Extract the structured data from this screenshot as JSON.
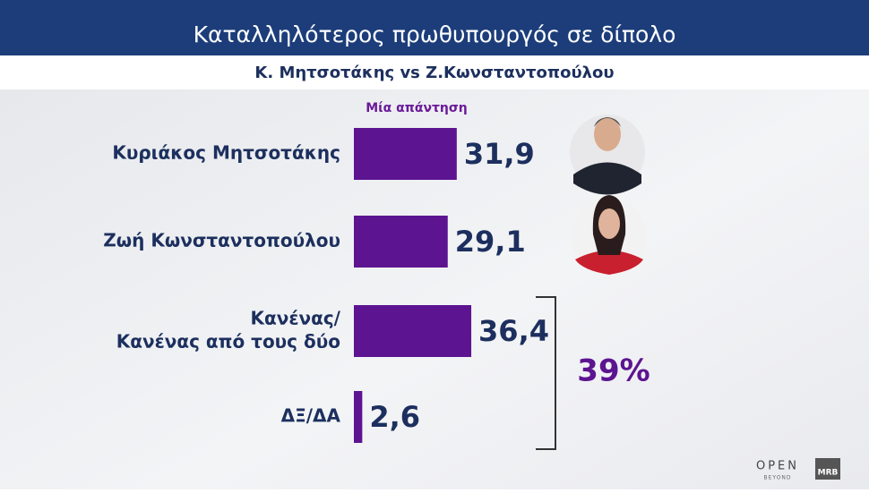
{
  "chart_data": {
    "type": "hbar",
    "title": "Καταλληλότερος πρωθυπουργός σε δίπολο",
    "subtitle": "Κ. Μητσοτάκης vs Ζ.Κωνσταντοπούλου",
    "series_label": "Μία απάντηση",
    "categories": [
      [
        "Κυριάκος Μητσοτάκης"
      ],
      [
        "Ζωή Κωνσταντοπούλου"
      ],
      [
        "Κανένας/",
        "Κανένας από τους δύο"
      ],
      [
        "ΔΞ/ΔΑ"
      ]
    ],
    "values": [
      31.9,
      29.1,
      36.4,
      2.6
    ],
    "value_labels": [
      "31,9",
      "29,1",
      "36,4",
      "2,6"
    ],
    "color": "#5c1491",
    "annotation": "39%",
    "branding": [
      "OPEN",
      "BEYOND",
      "MRB"
    ]
  }
}
